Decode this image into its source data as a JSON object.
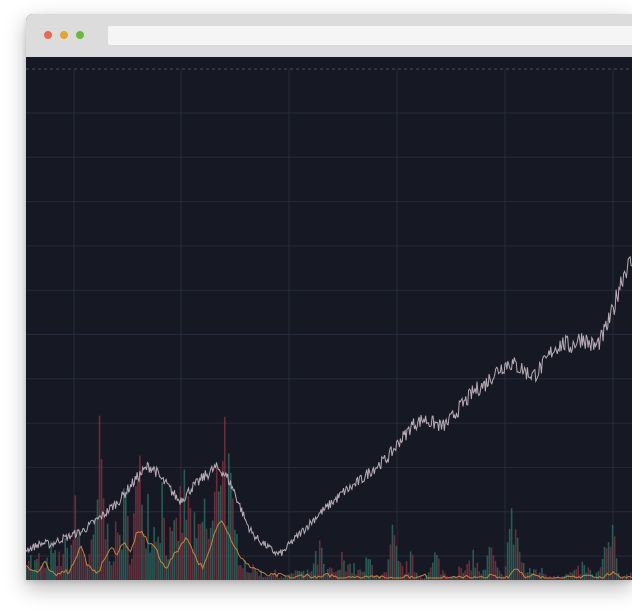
{
  "window": {
    "address_value": "",
    "address_placeholder": "",
    "controls": [
      {
        "name": "close",
        "color": "#e8694f"
      },
      {
        "name": "minimize",
        "color": "#e3a52e"
      },
      {
        "name": "maximize",
        "color": "#6ab83f"
      }
    ]
  },
  "theme": {
    "background": "#161823",
    "grid": "#272a3a",
    "price_line": "#c9bcc6",
    "volume_up": "#2e7566",
    "volume_down": "#8a3444",
    "indicator": "#d9923f"
  },
  "chart_data": {
    "type": "line",
    "title": "",
    "xlabel": "",
    "ylabel": "",
    "grid": true,
    "legend": "none",
    "series": [
      {
        "type": "line",
        "values": [
          8.5,
          9.0,
          10.0,
          10.5,
          10.0,
          11.0,
          12.0,
          12.5,
          13.5,
          14.0,
          15.5,
          17.0,
          18.5,
          20.0,
          22.0,
          23.5,
          26.0,
          28.5,
          31.0,
          33.0,
          35.0,
          34.0,
          31.0,
          29.0,
          26.5,
          24.0,
          25.5,
          28.0,
          29.5,
          31.5,
          33.0,
          34.5,
          33.5,
          31.0,
          27.0,
          22.0,
          17.0,
          13.5,
          11.5,
          10.0,
          8.5,
          7.0,
          7.5,
          10.0,
          12.0,
          14.0,
          16.0,
          18.0,
          20.0,
          21.5,
          23.5,
          25.0,
          27.0,
          28.0,
          29.5,
          31.0,
          33.0,
          34.5,
          36.0,
          37.5,
          40.0,
          43.0,
          45.0,
          48.0,
          49.0,
          50.0,
          49.0,
          48.5,
          47.5,
          49.0,
          51.5,
          54.0,
          56.0,
          58.5,
          60.0,
          61.0,
          63.5,
          65.5,
          67.0,
          68.0,
          67.0,
          66.0,
          64.5,
          64.0,
          66.0,
          68.5,
          72.0,
          73.5,
          74.0,
          73.0,
          75.0,
          76.0,
          74.0,
          73.0,
          75.5,
          80.0,
          85.0,
          93.0,
          98.0,
          100.0
        ]
      },
      {
        "type": "line",
        "values": [
          5,
          3,
          2,
          6,
          2,
          1,
          3,
          2,
          7,
          12,
          5,
          2,
          3,
          8,
          11,
          9,
          14,
          9,
          16,
          17,
          13,
          12,
          6,
          4,
          8,
          11,
          15,
          12,
          6,
          4,
          10,
          18,
          22,
          17,
          12,
          8,
          5,
          4,
          3,
          1,
          1,
          1,
          1,
          0,
          0,
          1,
          1,
          0,
          0,
          1,
          1,
          0,
          0,
          1,
          0,
          0,
          1,
          1,
          0,
          0,
          0,
          0,
          1,
          0,
          0,
          1,
          0,
          0,
          0,
          0,
          0,
          0,
          1,
          0,
          0,
          0,
          1,
          0,
          0,
          1,
          4,
          2,
          0,
          1,
          0,
          0,
          0,
          0,
          0,
          0,
          0,
          1,
          1,
          0,
          0,
          1,
          3,
          0,
          0,
          0
        ]
      },
      {
        "type": "bar",
        "values": [
          10,
          4,
          6,
          3,
          8,
          5,
          9,
          7,
          18,
          10,
          6,
          10,
          35,
          14,
          9,
          13,
          20,
          11,
          24,
          28,
          22,
          14,
          27,
          12,
          10,
          19,
          24,
          16,
          10,
          20,
          12,
          23,
          52,
          30,
          12,
          10,
          4,
          3,
          3,
          1,
          2,
          2,
          1,
          1,
          3,
          2,
          2,
          4,
          9,
          2,
          3,
          2,
          8,
          4,
          3,
          2,
          6,
          3,
          1,
          2,
          12,
          4,
          3,
          6,
          2,
          1,
          2,
          7,
          3,
          1,
          2,
          3,
          2,
          8,
          3,
          2,
          9,
          3,
          1,
          13,
          18,
          6,
          2,
          3,
          3,
          2,
          1,
          2,
          1,
          2,
          2,
          4,
          3,
          1,
          3,
          9,
          12,
          2,
          1,
          2
        ]
      }
    ]
  }
}
